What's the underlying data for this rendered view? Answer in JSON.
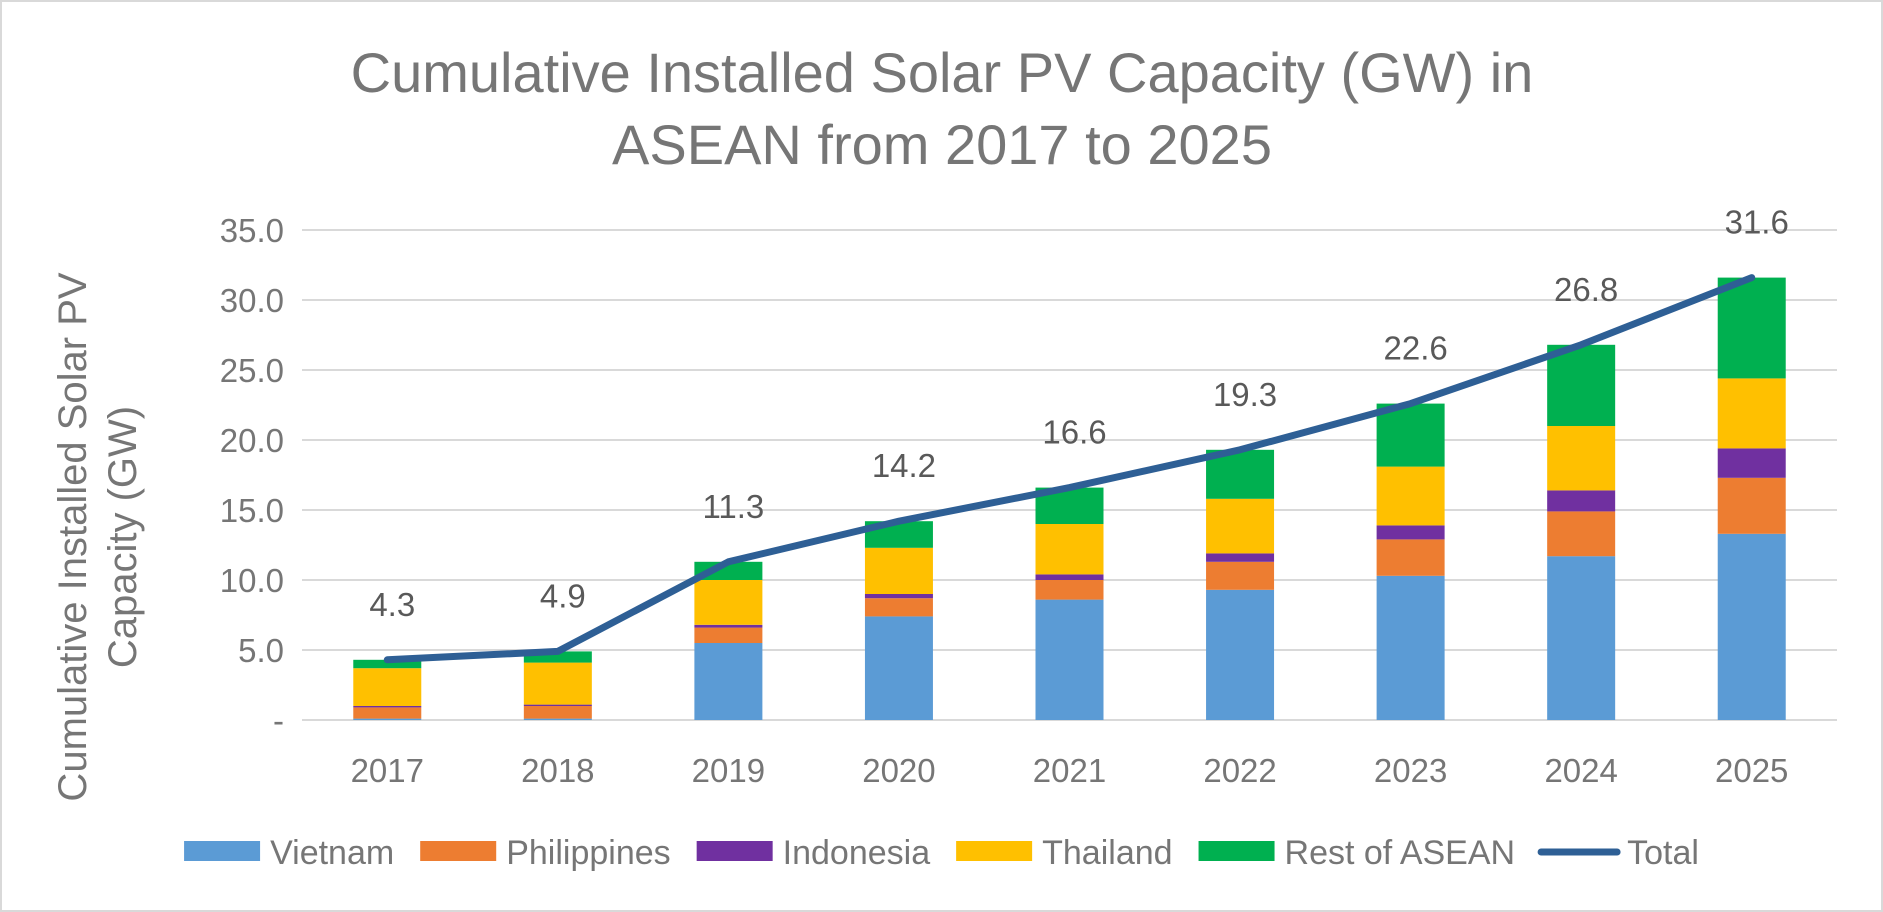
{
  "chart_data": {
    "type": "bar",
    "stacked": true,
    "title_lines": [
      "Cumulative Installed Solar PV Capacity (GW) in",
      "ASEAN from 2017 to 2025"
    ],
    "ylabel_lines": [
      "Cumulative Installed Solar PV",
      "Capacity (GW)"
    ],
    "xlabel": "",
    "ylim": [
      0,
      35
    ],
    "yticks": [
      0,
      5,
      10,
      15,
      20,
      25,
      30,
      35
    ],
    "ytick_labels": [
      "-",
      "5.0",
      "10.0",
      "15.0",
      "20.0",
      "25.0",
      "30.0",
      "35.0"
    ],
    "grid": true,
    "legend_position": "bottom",
    "categories": [
      "2017",
      "2018",
      "2019",
      "2020",
      "2021",
      "2022",
      "2023",
      "2024",
      "2025"
    ],
    "series": [
      {
        "name": "Vietnam",
        "color": "#5b9bd5",
        "values": [
          0.1,
          0.1,
          5.5,
          7.4,
          8.6,
          9.3,
          10.3,
          11.7,
          13.3
        ]
      },
      {
        "name": "Philippines",
        "color": "#ed7d31",
        "values": [
          0.8,
          0.9,
          1.1,
          1.3,
          1.4,
          2.0,
          2.6,
          3.2,
          4.0
        ]
      },
      {
        "name": "Indonesia",
        "color": "#7030a0",
        "values": [
          0.1,
          0.1,
          0.2,
          0.3,
          0.4,
          0.6,
          1.0,
          1.5,
          2.1
        ]
      },
      {
        "name": "Thailand",
        "color": "#ffc000",
        "values": [
          2.7,
          3.0,
          3.2,
          3.3,
          3.6,
          3.9,
          4.2,
          4.6,
          5.0
        ]
      },
      {
        "name": "Rest of ASEAN",
        "color": "#00b050",
        "values": [
          0.6,
          0.8,
          1.3,
          1.9,
          2.6,
          3.5,
          4.5,
          5.8,
          7.2
        ]
      }
    ],
    "line_series": {
      "name": "Total",
      "color": "#2e5f95",
      "values": [
        4.3,
        4.9,
        11.3,
        14.2,
        16.6,
        19.3,
        22.6,
        26.8,
        31.6
      ]
    },
    "data_labels": [
      "4.3",
      "4.9",
      "11.3",
      "14.2",
      "16.6",
      "19.3",
      "22.6",
      "26.8",
      "31.6"
    ]
  }
}
